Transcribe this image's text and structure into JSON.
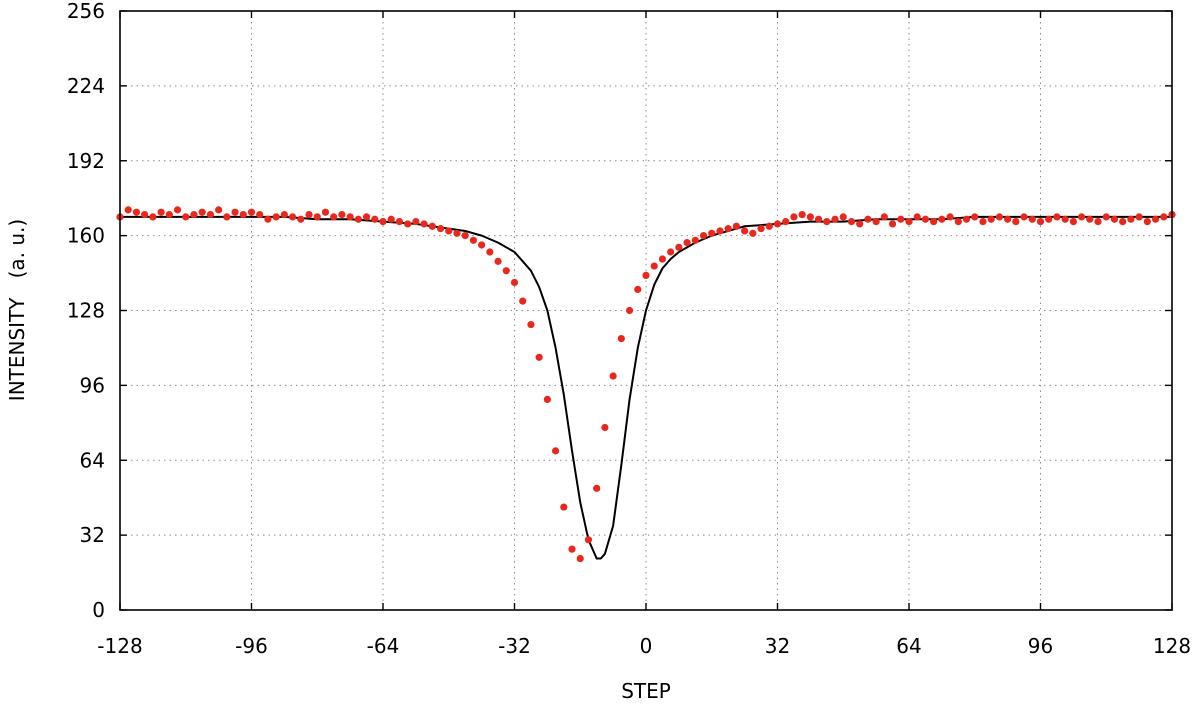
{
  "chart_data": {
    "type": "scatter",
    "title": "",
    "xlabel": "STEP",
    "ylabel": "INTENSITY   (a. u.)",
    "xlim": [
      -128,
      128
    ],
    "ylim": [
      0,
      256
    ],
    "x_ticks": [
      "-128",
      "-96",
      "-64",
      "-32",
      "0",
      "32",
      "64",
      "96",
      "128"
    ],
    "y_ticks": [
      "0",
      "32",
      "64",
      "96",
      "128",
      "160",
      "192",
      "224",
      "256"
    ],
    "grid": true,
    "legend": "none",
    "series": [
      {
        "kind": "points",
        "color": "#e8281c",
        "x": [
          -128,
          -126,
          -124,
          -122,
          -120,
          -118,
          -116,
          -114,
          -112,
          -110,
          -108,
          -106,
          -104,
          -102,
          -100,
          -98,
          -96,
          -94,
          -92,
          -90,
          -88,
          -86,
          -84,
          -82,
          -80,
          -78,
          -76,
          -74,
          -72,
          -70,
          -68,
          -66,
          -64,
          -62,
          -60,
          -58,
          -56,
          -54,
          -52,
          -50,
          -48,
          -46,
          -44,
          -42,
          -40,
          -38,
          -36,
          -34,
          -32,
          -30,
          -28,
          -26,
          -24,
          -22,
          -20,
          -18,
          -16,
          -14,
          -12,
          -10,
          -8,
          -6,
          -4,
          -2,
          0,
          2,
          4,
          6,
          8,
          10,
          12,
          14,
          16,
          18,
          20,
          22,
          24,
          26,
          28,
          30,
          32,
          34,
          36,
          38,
          40,
          42,
          44,
          46,
          48,
          50,
          52,
          54,
          56,
          58,
          60,
          62,
          64,
          66,
          68,
          70,
          72,
          74,
          76,
          78,
          80,
          82,
          84,
          86,
          88,
          90,
          92,
          94,
          96,
          98,
          100,
          102,
          104,
          106,
          108,
          110,
          112,
          114,
          116,
          118,
          120,
          122,
          124,
          126,
          128
        ],
        "y": [
          168,
          171,
          170,
          169,
          168,
          170,
          169,
          171,
          168,
          169,
          170,
          169,
          171,
          168,
          170,
          169,
          170,
          169,
          167,
          168,
          169,
          168,
          167,
          169,
          168,
          170,
          168,
          169,
          168,
          167,
          168,
          167,
          166,
          167,
          166,
          165,
          166,
          165,
          164,
          163,
          162,
          161,
          160,
          158,
          156,
          153,
          149,
          145,
          140,
          132,
          122,
          108,
          90,
          68,
          44,
          26,
          22,
          30,
          52,
          78,
          100,
          116,
          128,
          137,
          143,
          147,
          150,
          153,
          155,
          157,
          158,
          160,
          161,
          162,
          163,
          164,
          162,
          161,
          163,
          164,
          165,
          166,
          168,
          169,
          168,
          167,
          166,
          167,
          168,
          166,
          165,
          167,
          166,
          168,
          165,
          167,
          166,
          168,
          167,
          166,
          167,
          168,
          166,
          167,
          168,
          166,
          167,
          168,
          167,
          166,
          168,
          167,
          166,
          167,
          168,
          167,
          166,
          168,
          167,
          166,
          168,
          167,
          166,
          167,
          168,
          166,
          167,
          168,
          169
        ]
      },
      {
        "kind": "line",
        "color": "#000000",
        "x": [
          -128,
          -120,
          -112,
          -104,
          -96,
          -88,
          -80,
          -72,
          -64,
          -56,
          -48,
          -44,
          -40,
          -36,
          -32,
          -28,
          -26,
          -24,
          -22,
          -20,
          -18,
          -16,
          -14,
          -12,
          -11,
          -10,
          -8,
          -6,
          -4,
          -2,
          0,
          2,
          4,
          6,
          8,
          12,
          16,
          20,
          24,
          32,
          40,
          48,
          56,
          64,
          72,
          80,
          88,
          96,
          104,
          112,
          120,
          128
        ],
        "y": [
          168,
          168,
          168,
          168,
          168,
          168,
          167,
          167,
          166,
          165,
          163,
          162,
          160,
          157,
          153,
          145,
          138,
          128,
          112,
          92,
          68,
          46,
          30,
          22,
          22,
          24,
          36,
          62,
          90,
          112,
          128,
          139,
          146,
          150,
          153,
          157,
          160,
          162,
          164,
          165,
          166,
          166,
          167,
          167,
          167,
          168,
          168,
          168,
          168,
          168,
          168,
          168
        ]
      }
    ]
  }
}
